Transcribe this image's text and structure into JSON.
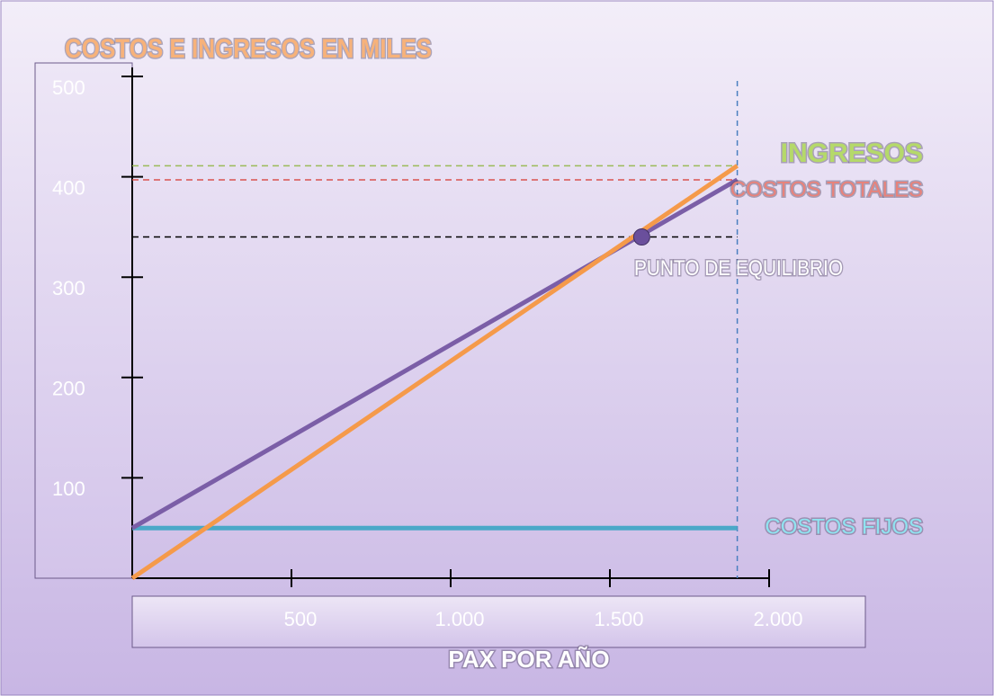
{
  "chart_data": {
    "type": "line",
    "title": "COSTOS E INGRESOS EN MILES",
    "x_label": "PAX POR AÑO",
    "x": [
      0,
      1900
    ],
    "series": [
      {
        "name": "COSTOS FIJOS",
        "color": "#4aa8c8",
        "label_color": "#8fe3f0",
        "guide": false,
        "values": [
          50,
          50
        ]
      },
      {
        "name": "COSTOS TOTALES",
        "color": "#7b5ea7",
        "label_color": "#e8827a",
        "guide": true,
        "values": [
          50,
          397
        ]
      },
      {
        "name": "INGRESOS",
        "color": "#f59a4a",
        "label_color": "#b5d96a",
        "guide": true,
        "values": [
          0,
          411
        ]
      }
    ],
    "guide_colors": {
      "INGRESOS": "#9bbb59",
      "COSTOS TOTALES": "#d9534f"
    },
    "break_even": {
      "label": "PUNTO DE EQUILIBRIO",
      "x": 1600,
      "y": 340,
      "color": "#6a4f9c"
    },
    "xlim": [
      0,
      2000
    ],
    "xticks": [
      500,
      {
        "value": 1000,
        "label": "1.000"
      },
      {
        "value": 1500,
        "label": "1.500"
      },
      {
        "value": 2000,
        "label": "2.000"
      }
    ],
    "ylim": [
      0,
      500
    ],
    "yticks": [
      100,
      200,
      300,
      400,
      500
    ]
  }
}
